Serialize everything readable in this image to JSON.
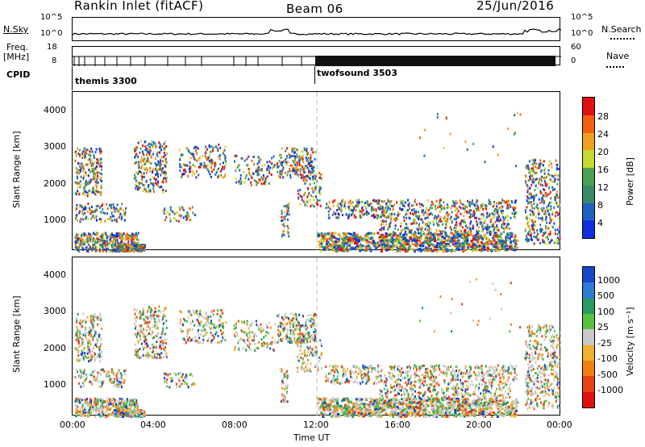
{
  "header": {
    "station": "Rankin Inlet (fitACF)",
    "beam": "Beam 06",
    "date": "25/Jun/2016"
  },
  "noise_panel": {
    "left_label": "N.Sky",
    "left_ticks": [
      "10^5",
      "10^0"
    ],
    "right_ticks": [
      "10^5",
      "10^0"
    ],
    "right_label": "N.Search"
  },
  "freq_panel": {
    "left_label_line1": "Freq.",
    "left_label_line2": "[MHz]",
    "left_ticks": [
      "18",
      "8"
    ],
    "right_ticks": [
      "60",
      "0"
    ],
    "right_label": "Nave"
  },
  "cpid": {
    "label": "CPID",
    "modes": [
      {
        "name": "themis 3300",
        "start_hour": 0
      },
      {
        "name": "twofsound 3503",
        "start_hour": 12
      }
    ]
  },
  "x_axis": {
    "label": "Time UT",
    "ticks": [
      "00:00",
      "04:00",
      "08:00",
      "12:00",
      "16:00",
      "20:00",
      "00:00"
    ],
    "range_hours": [
      0,
      24
    ]
  },
  "chart_data": [
    {
      "type": "heatmap",
      "title": "",
      "ylabel": "Slant Range [km]",
      "ylim": [
        180,
        4500
      ],
      "yticks": [
        "1000",
        "2000",
        "3000",
        "4000"
      ],
      "colorbar": {
        "label": "Power [dB]",
        "range": [
          0,
          32
        ],
        "ticks": [
          "4",
          "8",
          "12",
          "16",
          "20",
          "24",
          "28"
        ],
        "colors": [
          "#1030e0",
          "#2060c0",
          "#3a8a6a",
          "#4aa050",
          "#c8d830",
          "#f0a020",
          "#f06010",
          "#e01010"
        ]
      }
    },
    {
      "type": "heatmap",
      "title": "",
      "ylabel": "Slant Range [km]",
      "ylim": [
        180,
        4500
      ],
      "yticks": [
        "1000",
        "2000",
        "3000",
        "4000"
      ],
      "colorbar": {
        "label": "Velocity [m s⁻¹]",
        "ticks": [
          "1000",
          "500",
          "100",
          "25",
          "-25",
          "-100",
          "-500",
          "-1000"
        ],
        "colors": [
          "#1848c8",
          "#2e7ad0",
          "#2a9a60",
          "#58c040",
          "#c8c8c8",
          "#f0b030",
          "#f08010",
          "#e84010",
          "#e01010"
        ]
      }
    }
  ]
}
